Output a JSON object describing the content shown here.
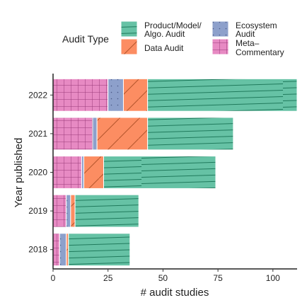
{
  "chart_data": {
    "type": "bar",
    "orientation": "horizontal",
    "stacked": true,
    "title": "",
    "xlabel": "# audit studies",
    "ylabel": "Year published",
    "xlim": [
      0,
      111
    ],
    "xticks": [
      0,
      25,
      50,
      75,
      100
    ],
    "categories": [
      "2018",
      "2019",
      "2020",
      "2021",
      "2022"
    ],
    "legend": {
      "title": "Audit Type",
      "placement": "top",
      "order": [
        "Product/Model/ Algo. Audit",
        "Data Audit",
        "Ecosystem Audit",
        "Meta– Commentary"
      ],
      "entries": [
        {
          "key": "product",
          "lines": [
            "Product/Model/",
            "Algo. Audit"
          ]
        },
        {
          "key": "data",
          "lines": [
            "Data Audit"
          ]
        },
        {
          "key": "ecosystem",
          "lines": [
            "Ecosystem",
            "Audit"
          ]
        },
        {
          "key": "meta",
          "lines": [
            "Meta–",
            "Commentary"
          ]
        }
      ]
    },
    "stack_order": [
      "Meta– Commentary",
      "Ecosystem Audit",
      "Data Audit",
      "Product/Model/ Algo. Audit"
    ],
    "series": [
      {
        "name": "Meta– Commentary",
        "color": "#e78ac3",
        "pattern": "grid",
        "values": [
          3,
          6,
          13,
          18,
          25
        ]
      },
      {
        "name": "Ecosystem Audit",
        "color": "#8da0cb",
        "pattern": "dots",
        "values": [
          3,
          2,
          1,
          2,
          7
        ]
      },
      {
        "name": "Data Audit",
        "color": "#fc8d62",
        "pattern": "diagonal",
        "values": [
          1,
          2,
          9,
          23,
          11
        ]
      },
      {
        "name": "Product/Model/ Algo. Audit",
        "color": "#66c2a5",
        "pattern": "lines",
        "values": [
          28,
          29,
          51,
          39,
          68
        ]
      }
    ],
    "grid": false
  }
}
